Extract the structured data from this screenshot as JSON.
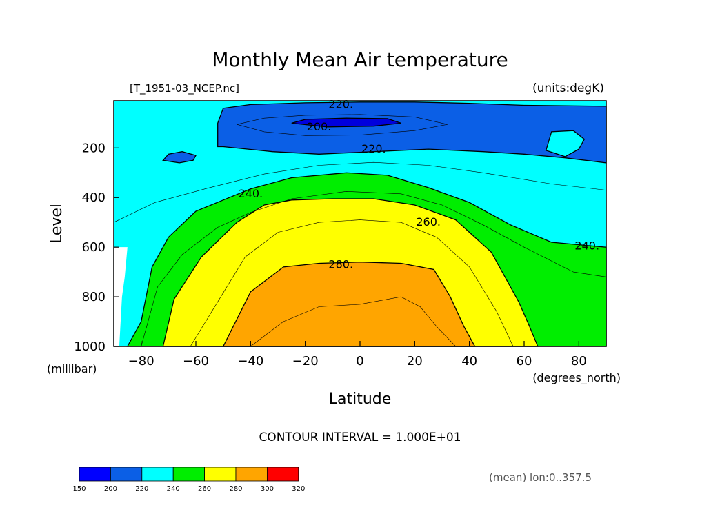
{
  "chart_data": {
    "type": "heatmap",
    "title": "Monthly Mean Air temperature",
    "file_label": "[T_1951-03_NCEP.nc]",
    "units_label": "(units:degK)",
    "xlabel": "Latitude",
    "x_units": "(degrees_north)",
    "ylabel": "Level",
    "y_units": "(millibar)",
    "xlim": [
      -90,
      90
    ],
    "ylim": [
      1000,
      10
    ],
    "x_ticks": [
      -80,
      -60,
      -40,
      -20,
      0,
      20,
      40,
      60,
      80
    ],
    "x_tick_labels": [
      "−80",
      "−60",
      "−40",
      "−20",
      "0",
      "20",
      "40",
      "60",
      "80"
    ],
    "y_ticks": [
      200,
      400,
      600,
      800,
      1000
    ],
    "y_tick_labels": [
      "200",
      "400",
      "600",
      "800",
      "1000"
    ],
    "contour_interval_text": "CONTOUR INTERVAL = 1.000E+01",
    "mean_note": "(mean) lon:0..357.5",
    "contour_labels": [
      {
        "text": "220.",
        "lat": -7,
        "lev": 25
      },
      {
        "text": "200.",
        "lat": -15,
        "lev": 115
      },
      {
        "text": "220.",
        "lat": 5,
        "lev": 205
      },
      {
        "text": "240.",
        "lat": -40,
        "lev": 385
      },
      {
        "text": "260.",
        "lat": 25,
        "lev": 500
      },
      {
        "text": "240.",
        "lat": 83,
        "lev": 595
      },
      {
        "text": "280.",
        "lat": -7,
        "lev": 670
      }
    ],
    "regions": [
      {
        "band": "200-220",
        "color": "#0b5fe6",
        "lat": [
          -50,
          -32,
          -15,
          5,
          25,
          45,
          60,
          75,
          90,
          90,
          75,
          60,
          40,
          20,
          0,
          -20,
          -40,
          -50,
          -52,
          -52
        ],
        "lev": [
          195,
          215,
          225,
          215,
          205,
          215,
          225,
          240,
          260,
          32,
          30,
          28,
          20,
          15,
          15,
          18,
          25,
          40,
          100,
          195
        ]
      },
      {
        "band": "200-220",
        "color": "#0b5fe6",
        "lat": [
          -72,
          -66,
          -61,
          -60,
          -65,
          -70,
          -72
        ],
        "lev": [
          250,
          260,
          250,
          230,
          215,
          225,
          250
        ]
      },
      {
        "band": "220-240",
        "color": "#00ffff",
        "lat": [
          68,
          75,
          80,
          82,
          78,
          70,
          68
        ],
        "lev": [
          210,
          235,
          205,
          165,
          130,
          135,
          210
        ]
      },
      {
        "band": "190-200",
        "color": "#0000dd",
        "lat": [
          -25,
          -12,
          5,
          15,
          10,
          -5,
          -20,
          -25
        ],
        "lev": [
          100,
          115,
          112,
          100,
          82,
          80,
          85,
          100
        ]
      },
      {
        "band": "240-260",
        "color": "#00ee00",
        "lat": [
          -85,
          -80,
          -76,
          -70,
          -60,
          -50,
          -40,
          -25,
          -5,
          10,
          25,
          40,
          55,
          70,
          90,
          90,
          70,
          50,
          30,
          10,
          -10,
          -30,
          -50,
          -65,
          -75,
          -82,
          -85
        ],
        "lev": [
          1000,
          900,
          680,
          560,
          455,
          410,
          365,
          320,
          300,
          310,
          360,
          420,
          510,
          580,
          600,
          1000,
          1000,
          1000,
          1000,
          1000,
          1000,
          1000,
          1000,
          1000,
          1000,
          1000,
          1000
        ]
      },
      {
        "band": "260-280",
        "color": "#ffff00",
        "lat": [
          -72,
          -68,
          -58,
          -45,
          -35,
          -25,
          -10,
          5,
          20,
          35,
          48,
          58,
          62,
          65,
          -72
        ],
        "lev": [
          1000,
          810,
          640,
          500,
          430,
          410,
          405,
          405,
          430,
          490,
          620,
          820,
          920,
          1000,
          1000
        ]
      },
      {
        "band": "280-300",
        "color": "#ffa500",
        "lat": [
          -50,
          -40,
          -28,
          -15,
          0,
          15,
          27,
          33,
          38,
          42,
          -50
        ],
        "lev": [
          1000,
          780,
          680,
          665,
          660,
          665,
          690,
          800,
          920,
          1000,
          1000
        ]
      }
    ],
    "colorbar": {
      "boundaries": [
        "150",
        "200",
        "220",
        "240",
        "260",
        "280",
        "300",
        "320"
      ],
      "colors": [
        "#0000ff",
        "#0b5fe6",
        "#00ffff",
        "#00ee00",
        "#ffff00",
        "#ffa500",
        "#ff0000"
      ]
    }
  }
}
